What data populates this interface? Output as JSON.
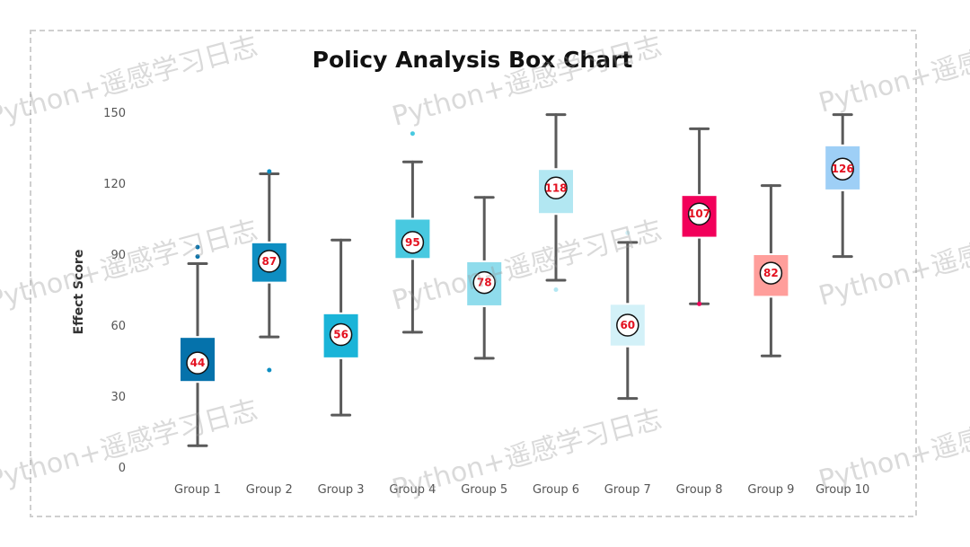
{
  "chart_data": {
    "type": "box",
    "title": "Policy Analysis Box Chart",
    "ylabel": "Effect Score",
    "xlabel": "",
    "ylim": [
      0,
      150
    ],
    "yticks": [
      0,
      30,
      60,
      90,
      120,
      150
    ],
    "grid": false,
    "categories": [
      "Group 1",
      "Group 2",
      "Group 3",
      "Group 4",
      "Group 5",
      "Group 6",
      "Group 7",
      "Group 8",
      "Group 9",
      "Group 10"
    ],
    "boxes": [
      {
        "min": 9,
        "q1": 36,
        "median": 44,
        "q3": 55,
        "max": 86,
        "outliers": [
          93,
          89
        ],
        "color": "#0572ab"
      },
      {
        "min": 55,
        "q1": 78,
        "median": 87,
        "q3": 95,
        "max": 124,
        "outliers": [
          125,
          41
        ],
        "color": "#0e8ec2"
      },
      {
        "min": 22,
        "q1": 46,
        "median": 56,
        "q3": 65,
        "max": 96,
        "outliers": [],
        "color": "#1ab4d8"
      },
      {
        "min": 57,
        "q1": 88,
        "median": 95,
        "q3": 105,
        "max": 129,
        "outliers": [
          141
        ],
        "color": "#48c9e0"
      },
      {
        "min": 46,
        "q1": 68,
        "median": 78,
        "q3": 87,
        "max": 114,
        "outliers": [],
        "color": "#8fdcec"
      },
      {
        "min": 79,
        "q1": 107,
        "median": 118,
        "q3": 126,
        "max": 149,
        "outliers": [
          75
        ],
        "color": "#b2e7f2"
      },
      {
        "min": 29,
        "q1": 51,
        "median": 60,
        "q3": 69,
        "max": 95,
        "outliers": [
          99
        ],
        "color": "#d3f1f8"
      },
      {
        "min": 69,
        "q1": 97,
        "median": 107,
        "q3": 115,
        "max": 143,
        "outliers": [
          69
        ],
        "color": "#f2005a"
      },
      {
        "min": 47,
        "q1": 72,
        "median": 82,
        "q3": 90,
        "max": 119,
        "outliers": [],
        "color": "#ff9e9b"
      },
      {
        "min": 89,
        "q1": 117,
        "median": 126,
        "q3": 136,
        "max": 149,
        "outliers": [],
        "color": "#9ecff6"
      }
    ],
    "watermark_text": "Python+遥感学习日志"
  }
}
